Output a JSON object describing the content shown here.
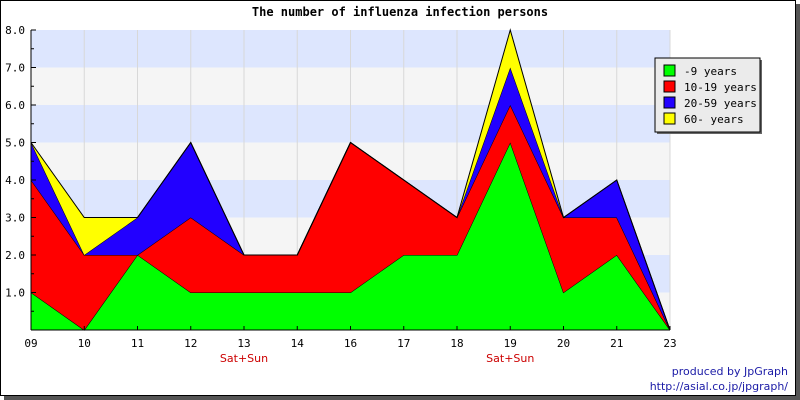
{
  "chart_data": {
    "type": "area",
    "stacked": true,
    "title": "The number of influenza infection persons",
    "x": [
      "09",
      "10",
      "11",
      "12",
      "13",
      "14",
      "16",
      "17",
      "18",
      "19",
      "20",
      "21",
      "23"
    ],
    "x_sublabels": {
      "13": "Sat+Sun",
      "19": "Sat+Sun"
    },
    "ylim": [
      0,
      8
    ],
    "yticks": [
      "1.0",
      "2.0",
      "3.0",
      "4.0",
      "5.0",
      "6.0",
      "7.0",
      "8.0"
    ],
    "grid": true,
    "legend_position": "top-right",
    "series": [
      {
        "name": "-9 years",
        "color": "#00ff00",
        "values": [
          1,
          0,
          2,
          1,
          1,
          1,
          1,
          2,
          2,
          5,
          1,
          2,
          0
        ]
      },
      {
        "name": "10-19 years",
        "color": "#ff0000",
        "values": [
          3,
          2,
          0,
          2,
          1,
          1,
          4,
          2,
          1,
          1,
          2,
          1,
          0
        ]
      },
      {
        "name": "20-59 years",
        "color": "#2200ff",
        "values": [
          1,
          0,
          1,
          2,
          0,
          0,
          0,
          0,
          0,
          1,
          0,
          1,
          0
        ]
      },
      {
        "name": "60- years",
        "color": "#ffff00",
        "values": [
          0,
          1,
          0,
          0,
          0,
          0,
          0,
          0,
          0,
          1,
          0,
          0,
          0
        ]
      }
    ],
    "band_colors": [
      "#dde6fe",
      "#f5f5f5"
    ],
    "sublabel_color": "#cc0000"
  },
  "footer": {
    "credit": "produced by JpGraph",
    "url": "http://asial.co.jp/jpgraph/",
    "color": "#1a1aa6"
  }
}
